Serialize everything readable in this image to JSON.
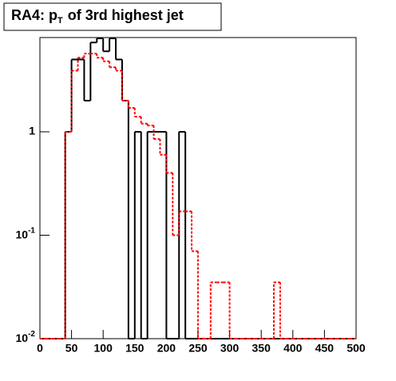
{
  "chart_data": {
    "type": "histogram",
    "title": {
      "text": "RA4: p",
      "subscript": "T",
      "rest": "of 3rd highest jet"
    },
    "bins": [
      0,
      10,
      20,
      30,
      40,
      50,
      60,
      70,
      80,
      90,
      100,
      110,
      120,
      130,
      140,
      150,
      160,
      170,
      180,
      190,
      200,
      210,
      220,
      230,
      240,
      250,
      260,
      270,
      280,
      290,
      300,
      310,
      320,
      330,
      340,
      350,
      360,
      370,
      380,
      390,
      400,
      410,
      420,
      430,
      440,
      450,
      460,
      470,
      480,
      490,
      500
    ],
    "series": [
      {
        "color": "#000000",
        "dashed": false,
        "values": [
          0,
          0,
          0,
          0,
          1,
          5,
          5,
          2,
          7.3,
          8,
          6,
          8,
          5,
          2,
          0,
          1,
          0,
          1,
          1,
          1,
          0,
          0,
          1,
          0,
          0,
          0,
          0,
          0,
          0,
          0,
          0,
          0,
          0,
          0,
          0,
          0,
          0,
          0,
          0,
          0,
          0,
          0,
          0,
          0,
          0,
          0,
          0,
          0,
          0,
          0
        ]
      },
      {
        "color": "#ff0000",
        "dashed": true,
        "values": [
          0,
          0,
          0,
          0,
          1,
          3.9,
          5.2,
          5.7,
          5.7,
          5.2,
          4.8,
          4.2,
          3.9,
          2.0,
          1.7,
          1.4,
          1.2,
          1.15,
          0.85,
          0.6,
          0.4,
          0.1,
          0.17,
          0.17,
          0.07,
          0,
          0,
          0.035,
          0.035,
          0.035,
          0,
          0,
          0,
          0,
          0,
          0,
          0,
          0.035,
          0,
          0,
          0,
          0,
          0,
          0,
          0,
          0,
          0,
          0,
          0,
          0
        ]
      }
    ],
    "xlim": [
      0,
      500
    ],
    "xticks": [
      0,
      50,
      100,
      150,
      200,
      250,
      300,
      350,
      400,
      450,
      500
    ],
    "ylim": [
      0.01,
      8.15
    ],
    "log_y": true,
    "yticks": [
      {
        "value": 0.01,
        "label": "10",
        "exponent": "-2"
      },
      {
        "value": 0.1,
        "label": "10",
        "exponent": "-1"
      },
      1
    ]
  }
}
